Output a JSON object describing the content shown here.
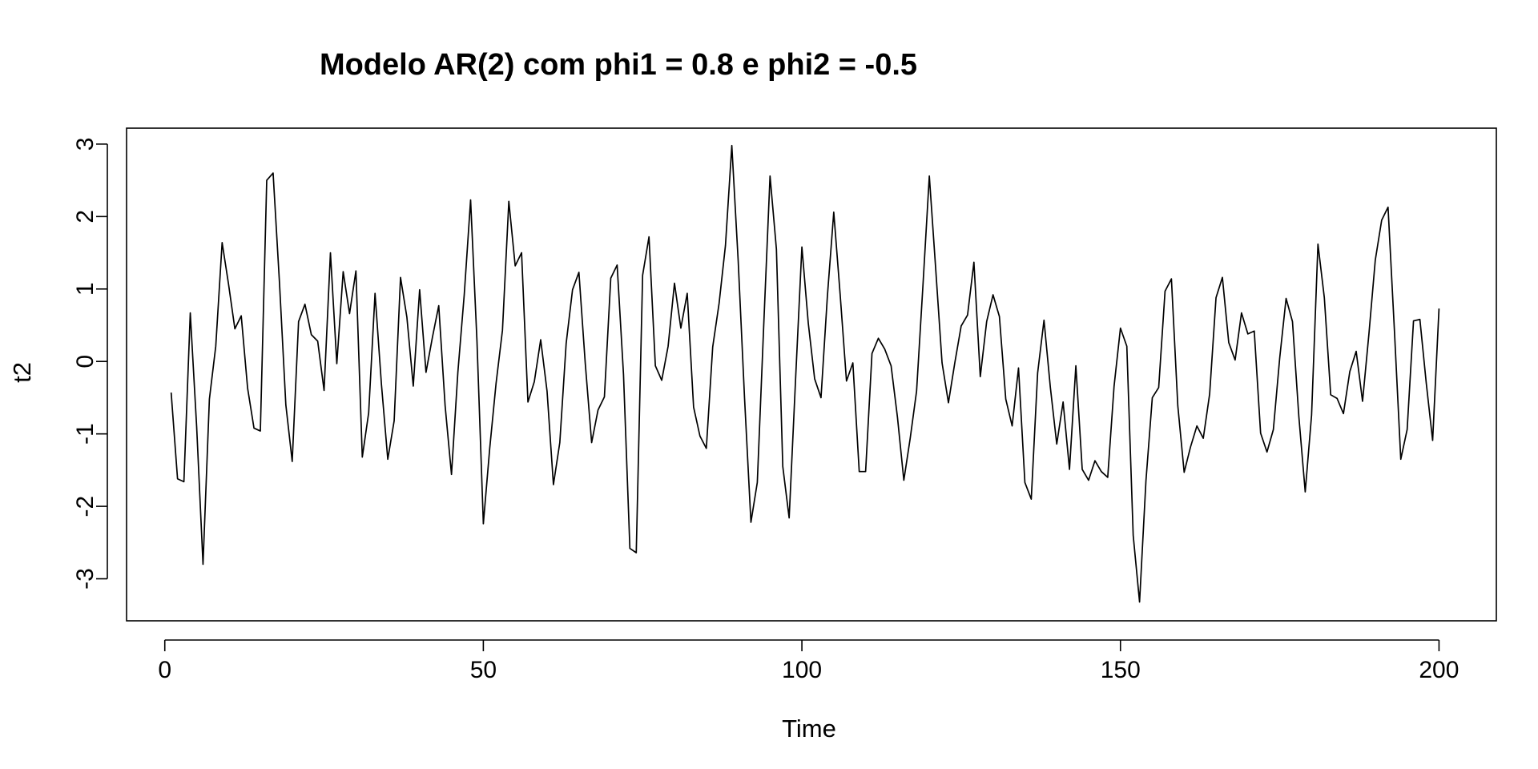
{
  "chart_data": {
    "type": "line",
    "title": "Modelo AR(2) com phi1 = 0.8 e phi2 = -0.5",
    "xlabel": "Time",
    "ylabel": "t2",
    "xlim": [
      -6,
      209
    ],
    "ylim": [
      -3.58,
      3.22
    ],
    "x_ticks": [
      0,
      50,
      100,
      150,
      200
    ],
    "x_tick_labels": [
      "0",
      "50",
      "100",
      "150",
      "200"
    ],
    "y_ticks": [
      -3,
      -2,
      -1,
      0,
      1,
      2,
      3
    ],
    "y_tick_labels": [
      "-3",
      "-2",
      "-1",
      "0",
      "1",
      "2",
      "3"
    ],
    "grid": false,
    "line_color": "#000000",
    "x_start": 1,
    "series": [
      {
        "values": [
          -0.43,
          -1.62,
          -1.66,
          0.67,
          -0.9,
          -2.8,
          -0.52,
          0.21,
          1.64,
          1.07,
          0.45,
          0.63,
          -0.37,
          -0.92,
          -0.96,
          2.5,
          2.6,
          1.09,
          -0.6,
          -1.38,
          0.55,
          0.79,
          0.37,
          0.28,
          -0.4,
          1.5,
          -0.03,
          1.24,
          0.66,
          1.25,
          -1.32,
          -0.71,
          0.94,
          -0.31,
          -1.35,
          -0.82,
          1.16,
          0.61,
          -0.34,
          0.99,
          -0.15,
          0.33,
          0.77,
          -0.61,
          -1.56,
          -0.15,
          0.92,
          2.23,
          0.28,
          -2.24,
          -1.2,
          -0.3,
          0.43,
          2.21,
          1.32,
          1.5,
          -0.56,
          -0.28,
          0.3,
          -0.41,
          -1.7,
          -1.12,
          0.25,
          0.99,
          1.23,
          -0.03,
          -1.12,
          -0.67,
          -0.49,
          1.15,
          1.33,
          -0.18,
          -2.58,
          -2.64,
          1.19,
          1.72,
          -0.06,
          -0.26,
          0.21,
          1.08,
          0.46,
          0.94,
          -0.63,
          -1.03,
          -1.2,
          0.2,
          0.8,
          1.6,
          2.98,
          1.39,
          -0.51,
          -2.22,
          -1.67,
          0.48,
          2.56,
          1.55,
          -1.45,
          -2.16,
          -0.26,
          1.58,
          0.53,
          -0.24,
          -0.5,
          0.9,
          2.06,
          0.93,
          -0.27,
          -0.02,
          -1.52,
          -1.52,
          0.11,
          0.32,
          0.17,
          -0.06,
          -0.77,
          -1.64,
          -1.06,
          -0.41,
          1.05,
          2.56,
          1.28,
          -0.02,
          -0.57,
          -0.02,
          0.49,
          0.64,
          1.37,
          -0.21,
          0.55,
          0.92,
          0.62,
          -0.52,
          -0.89,
          -0.09,
          -1.67,
          -1.9,
          -0.16,
          0.57,
          -0.36,
          -1.14,
          -0.56,
          -1.49,
          -0.06,
          -1.49,
          -1.64,
          -1.37,
          -1.52,
          -1.6,
          -0.34,
          0.46,
          0.21,
          -2.4,
          -3.32,
          -1.65,
          -0.5,
          -0.36,
          0.97,
          1.14,
          -0.61,
          -1.53,
          -1.18,
          -0.89,
          -1.06,
          -0.45,
          0.88,
          1.16,
          0.26,
          0.02,
          0.67,
          0.38,
          0.42,
          -0.99,
          -1.25,
          -0.94,
          0.05,
          0.87,
          0.55,
          -0.76,
          -1.8,
          -0.74,
          1.62,
          0.88,
          -0.46,
          -0.51,
          -0.72,
          -0.14,
          0.14,
          -0.55,
          0.38,
          1.4,
          1.95,
          2.13,
          0.43,
          -1.35,
          -0.94,
          0.56,
          0.58,
          -0.3,
          -1.09,
          0.73
        ]
      }
    ]
  }
}
